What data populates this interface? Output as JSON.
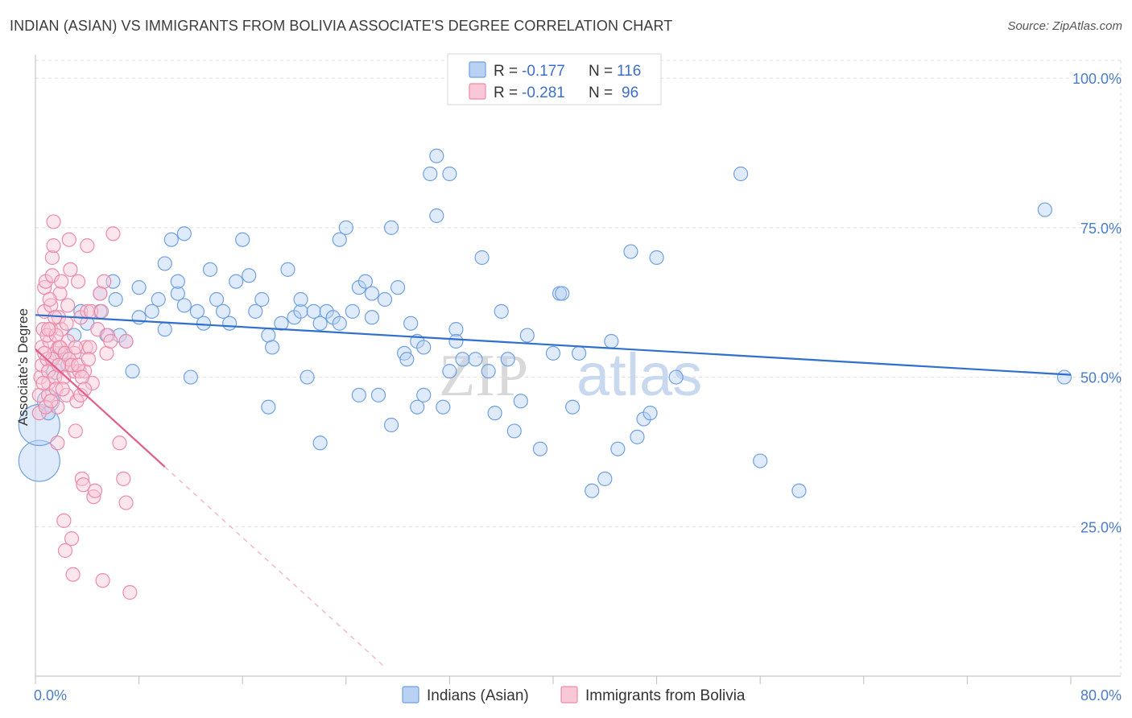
{
  "title": "INDIAN (ASIAN) VS IMMIGRANTS FROM BOLIVIA ASSOCIATE'S DEGREE CORRELATION CHART",
  "source": "Source: ZipAtlas.com",
  "watermark": {
    "zip": "ZIP",
    "atlas": "atlas"
  },
  "colors": {
    "blue": "#6fa1e0",
    "blue_fill": "#b9d1f3",
    "blue_line": "#2f6fce",
    "pink": "#ec8aa8",
    "pink_fill": "#f9c8d6",
    "pink_line": "#e0608a",
    "grid": "#dddddd",
    "axis_text": "#4a7cc7"
  },
  "legend": {
    "r_label": "R =",
    "n_label": "N =",
    "rows": [
      {
        "r": "-0.177",
        "n": "116",
        "series": "blue"
      },
      {
        "r": "-0.281",
        "n": "96",
        "series": "pink"
      }
    ]
  },
  "bottom_legend": [
    "Indians (Asian)",
    "Immigrants from Bolivia"
  ],
  "chart_data": {
    "type": "scatter",
    "title": "INDIAN (ASIAN) VS IMMIGRANTS FROM BOLIVIA ASSOCIATE'S DEGREE CORRELATION CHART",
    "xlabel": "",
    "ylabel": "Associate's Degree",
    "xlim": [
      0,
      80
    ],
    "ylim": [
      0,
      105
    ],
    "x_ticks": [
      0,
      8,
      16,
      24,
      32,
      40,
      48,
      56,
      64,
      72,
      80
    ],
    "x_tick_labels": {
      "0": "0.0%",
      "80": "80.0%"
    },
    "y_ticks": [
      25,
      50,
      75,
      100
    ],
    "y_tick_labels": [
      "25.0%",
      "50.0%",
      "75.0%",
      "100.0%"
    ],
    "series": [
      {
        "name": "Indians (Asian)",
        "color": "blue",
        "r": -0.177,
        "n": 116,
        "trend": {
          "x0": 0,
          "y0": 60.4,
          "x1": 80,
          "y1": 50.4
        },
        "points": [
          [
            0.3,
            36,
            3.0
          ],
          [
            0.3,
            42,
            3.0
          ],
          [
            1,
            46,
            1.6
          ],
          [
            1,
            44,
            1.0
          ],
          [
            1.5,
            51,
            1.2
          ],
          [
            2,
            54,
            1.0
          ],
          [
            2.5,
            52,
            1.0
          ],
          [
            3,
            57,
            1.0
          ],
          [
            3.5,
            61,
            1.0
          ],
          [
            4,
            59,
            1.0
          ],
          [
            5,
            61,
            1.0
          ],
          [
            5,
            64,
            1.0
          ],
          [
            5.5,
            57,
            1.0
          ],
          [
            6,
            66,
            1.0
          ],
          [
            6.2,
            63,
            1.0
          ],
          [
            6.5,
            57,
            1.0
          ],
          [
            7,
            56,
            1.0
          ],
          [
            7.5,
            51,
            1.0
          ],
          [
            8,
            60,
            1.0
          ],
          [
            8,
            65,
            1.0
          ],
          [
            9,
            61,
            1.0
          ],
          [
            9.5,
            63,
            1.0
          ],
          [
            10,
            58,
            1.0
          ],
          [
            10.5,
            73,
            1.0
          ],
          [
            10,
            69,
            1.0
          ],
          [
            11,
            64,
            1.0
          ],
          [
            11,
            66,
            1.0
          ],
          [
            11.5,
            62,
            1.0
          ],
          [
            11.5,
            74,
            1.0
          ],
          [
            12,
            50,
            1.0
          ],
          [
            12.5,
            61,
            1.0
          ],
          [
            13,
            59,
            1.0
          ],
          [
            13.5,
            68,
            1.0
          ],
          [
            14,
            63,
            1.0
          ],
          [
            14.5,
            61,
            1.0
          ],
          [
            15,
            59,
            1.0
          ],
          [
            15.5,
            66,
            1.0
          ],
          [
            16,
            73,
            1.0
          ],
          [
            16.5,
            67,
            1.0
          ],
          [
            17,
            61,
            1.0
          ],
          [
            17.5,
            63,
            1.0
          ],
          [
            18,
            57,
            1.0
          ],
          [
            18.3,
            55,
            1.0
          ],
          [
            18,
            45,
            1.0
          ],
          [
            19,
            59,
            1.0
          ],
          [
            19.5,
            68,
            1.0
          ],
          [
            20,
            60,
            1.0
          ],
          [
            20.5,
            61,
            1.0
          ],
          [
            20.5,
            63,
            1.0
          ],
          [
            21,
            50,
            1.0
          ],
          [
            21.5,
            61,
            1.0
          ],
          [
            22,
            39,
            1.0
          ],
          [
            22,
            59,
            1.0
          ],
          [
            22.5,
            61,
            1.0
          ],
          [
            23,
            60,
            1.0
          ],
          [
            23.5,
            59,
            1.0
          ],
          [
            23.5,
            73,
            1.0
          ],
          [
            24,
            75,
            1.0
          ],
          [
            24.5,
            61,
            1.0
          ],
          [
            25,
            65,
            1.0
          ],
          [
            25,
            47,
            1.0
          ],
          [
            25.5,
            66,
            1.0
          ],
          [
            26,
            64,
            1.0
          ],
          [
            26,
            60,
            1.0
          ],
          [
            26.5,
            47,
            1.0
          ],
          [
            27,
            63,
            1.0
          ],
          [
            27.5,
            75,
            1.0
          ],
          [
            27.5,
            42,
            1.0
          ],
          [
            28,
            65,
            1.0
          ],
          [
            28.5,
            54,
            1.0
          ],
          [
            28.7,
            53,
            1.0
          ],
          [
            29,
            59,
            1.0
          ],
          [
            29.5,
            45,
            1.0
          ],
          [
            29.5,
            56,
            1.0
          ],
          [
            30,
            55,
            1.0
          ],
          [
            30,
            47,
            1.0
          ],
          [
            30.5,
            84,
            1.0
          ],
          [
            31,
            77,
            1.0
          ],
          [
            31,
            87,
            1.0
          ],
          [
            31.5,
            45,
            1.0
          ],
          [
            32,
            84,
            1.0
          ],
          [
            32,
            51,
            1.0
          ],
          [
            32.5,
            58,
            1.0
          ],
          [
            32.5,
            56,
            1.0
          ],
          [
            33,
            53,
            1.0
          ],
          [
            34,
            53,
            1.0
          ],
          [
            34.5,
            70,
            1.0
          ],
          [
            35,
            51,
            1.0
          ],
          [
            35.5,
            44,
            1.0
          ],
          [
            36,
            61,
            1.0
          ],
          [
            36.5,
            53,
            1.0
          ],
          [
            37,
            41,
            1.0
          ],
          [
            37.5,
            46,
            1.0
          ],
          [
            38,
            57,
            1.0
          ],
          [
            39,
            38,
            1.0
          ],
          [
            40,
            54,
            1.0
          ],
          [
            40.5,
            64,
            1.0
          ],
          [
            40.7,
            64,
            1.0
          ],
          [
            41.5,
            45,
            1.0
          ],
          [
            42,
            54,
            1.0
          ],
          [
            43,
            31,
            1.0
          ],
          [
            44,
            33,
            1.0
          ],
          [
            44.5,
            56,
            1.0
          ],
          [
            45,
            38,
            1.0
          ],
          [
            46,
            71,
            1.0
          ],
          [
            46.5,
            40,
            1.0
          ],
          [
            47,
            43,
            1.0
          ],
          [
            47.5,
            44,
            1.0
          ],
          [
            48,
            70,
            1.0
          ],
          [
            49.5,
            50,
            1.0
          ],
          [
            54.5,
            84,
            1.0
          ],
          [
            56,
            36,
            1.0
          ],
          [
            59,
            31,
            1.0
          ],
          [
            78,
            78,
            1.0
          ],
          [
            79.5,
            50,
            1.0
          ]
        ]
      },
      {
        "name": "Immigrants from Bolivia",
        "color": "pink",
        "r": -0.281,
        "n": 96,
        "trend": {
          "x0": 0,
          "y0": 54.7,
          "x1": 10,
          "y1": 35.0,
          "dash_to_x": 27
        },
        "points": [
          [
            0.3,
            44,
            1.0
          ],
          [
            0.3,
            47,
            1.0
          ],
          [
            0.4,
            50,
            1.0
          ],
          [
            0.5,
            52,
            1.0
          ],
          [
            0.5,
            55,
            1.0
          ],
          [
            0.6,
            58,
            1.0
          ],
          [
            0.7,
            61,
            1.0
          ],
          [
            0.7,
            65,
            1.0
          ],
          [
            0.8,
            66,
            1.0
          ],
          [
            0.9,
            53,
            1.0
          ],
          [
            1,
            47,
            1.0
          ],
          [
            1,
            49,
            1.0
          ],
          [
            1,
            51,
            1.0
          ],
          [
            1.1,
            56,
            1.0
          ],
          [
            1.2,
            58,
            1.0
          ],
          [
            1.2,
            62,
            1.0
          ],
          [
            1.3,
            67,
            1.0
          ],
          [
            1.3,
            70,
            1.0
          ],
          [
            1.4,
            76,
            1.0
          ],
          [
            1.4,
            72,
            1.0
          ],
          [
            1.5,
            54,
            1.0
          ],
          [
            1.5,
            50,
            1.0
          ],
          [
            1.6,
            48,
            1.0
          ],
          [
            1.7,
            45,
            1.0
          ],
          [
            1.7,
            39,
            1.0
          ],
          [
            1.8,
            55,
            1.0
          ],
          [
            1.8,
            60,
            1.0
          ],
          [
            1.9,
            64,
            1.0
          ],
          [
            2,
            66,
            1.0
          ],
          [
            2,
            58,
            1.0
          ],
          [
            2.1,
            52,
            1.0
          ],
          [
            2.2,
            50,
            1.0
          ],
          [
            2.2,
            26,
            1.0
          ],
          [
            2.3,
            21,
            1.0
          ],
          [
            2.4,
            47,
            1.0
          ],
          [
            2.5,
            56,
            1.0
          ],
          [
            2.5,
            62,
            1.0
          ],
          [
            2.6,
            73,
            1.0
          ],
          [
            2.7,
            68,
            1.0
          ],
          [
            2.8,
            23,
            1.0
          ],
          [
            2.9,
            17,
            1.0
          ],
          [
            3,
            54,
            1.0
          ],
          [
            3,
            51,
            1.0
          ],
          [
            3.1,
            41,
            1.0
          ],
          [
            3.2,
            46,
            1.0
          ],
          [
            3.3,
            66,
            1.0
          ],
          [
            3.4,
            51,
            1.0
          ],
          [
            3.5,
            60,
            1.0
          ],
          [
            3.5,
            47,
            1.0
          ],
          [
            3.6,
            33,
            1.0
          ],
          [
            3.7,
            32,
            1.0
          ],
          [
            3.8,
            51,
            1.0
          ],
          [
            3.9,
            55,
            1.0
          ],
          [
            4,
            72,
            1.0
          ],
          [
            4,
            61,
            1.0
          ],
          [
            4.2,
            55,
            1.0
          ],
          [
            4.3,
            61,
            1.0
          ],
          [
            4.4,
            49,
            1.0
          ],
          [
            4.5,
            30,
            1.0
          ],
          [
            4.6,
            31,
            1.0
          ],
          [
            4.8,
            58,
            1.0
          ],
          [
            5,
            64,
            1.0
          ],
          [
            5.1,
            61,
            1.0
          ],
          [
            5.2,
            16,
            1.0
          ],
          [
            5.3,
            66,
            1.0
          ],
          [
            5.5,
            54,
            1.0
          ],
          [
            5.6,
            57,
            1.0
          ],
          [
            5.8,
            56,
            1.0
          ],
          [
            6,
            74,
            1.0
          ],
          [
            6.5,
            39,
            1.0
          ],
          [
            6.8,
            33,
            1.0
          ],
          [
            7,
            29,
            1.0
          ],
          [
            7,
            56,
            1.0
          ],
          [
            7.3,
            14,
            1.0
          ],
          [
            0.8,
            45,
            1.0
          ],
          [
            0.9,
            57,
            1.0
          ],
          [
            1.1,
            63,
            1.0
          ],
          [
            1.3,
            53,
            1.0
          ],
          [
            1.6,
            57,
            1.0
          ],
          [
            1.9,
            55,
            1.0
          ],
          [
            2.1,
            48,
            1.0
          ],
          [
            2.3,
            54,
            1.0
          ],
          [
            2.4,
            59,
            1.0
          ],
          [
            2.6,
            53,
            1.0
          ],
          [
            2.8,
            52,
            1.0
          ],
          [
            3.1,
            55,
            1.0
          ],
          [
            3.3,
            52,
            1.0
          ],
          [
            3.6,
            50,
            1.0
          ],
          [
            3.8,
            48,
            1.0
          ],
          [
            4.1,
            53,
            1.0
          ],
          [
            0.6,
            49,
            1.0
          ],
          [
            0.7,
            54,
            1.0
          ],
          [
            1.0,
            58,
            1.0
          ],
          [
            1.2,
            46,
            1.0
          ],
          [
            1.5,
            60,
            1.0
          ],
          [
            1.8,
            52,
            1.0
          ]
        ]
      }
    ]
  }
}
